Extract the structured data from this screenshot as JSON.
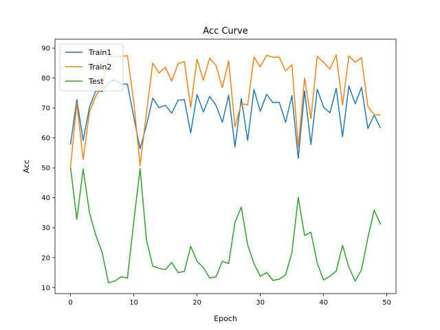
{
  "chart_data": {
    "type": "line",
    "title": "Acc Curve",
    "xlabel": "Epoch",
    "ylabel": "Acc",
    "xlim": [
      -2.45,
      51.45
    ],
    "ylim": [
      8,
      93
    ],
    "xticks": [
      0,
      10,
      20,
      30,
      40,
      50
    ],
    "yticks": [
      10,
      20,
      30,
      40,
      50,
      60,
      70,
      80,
      90
    ],
    "grid": false,
    "legend_position": "top-left",
    "x": [
      0,
      1,
      2,
      3,
      4,
      5,
      6,
      7,
      8,
      9,
      10,
      11,
      12,
      13,
      14,
      15,
      16,
      17,
      18,
      19,
      20,
      21,
      22,
      23,
      24,
      25,
      26,
      27,
      28,
      29,
      30,
      31,
      32,
      33,
      34,
      35,
      36,
      37,
      38,
      39,
      40,
      41,
      42,
      43,
      44,
      45,
      46,
      47,
      48,
      49
    ],
    "series": [
      {
        "name": "Train1",
        "color": "#1f77b4",
        "values": [
          57.8,
          72.8,
          59.2,
          70.3,
          75.8,
          75.5,
          78.5,
          79.5,
          78.0,
          78.0,
          67.0,
          56.4,
          64.2,
          73.3,
          70.1,
          70.9,
          68.3,
          72.6,
          72.8,
          61.7,
          74.5,
          68.7,
          73.9,
          70.9,
          65.2,
          74.3,
          57.0,
          73.2,
          59.2,
          76.2,
          68.9,
          74.6,
          71.8,
          71.9,
          65.2,
          74.2,
          53.2,
          75.7,
          57.8,
          76.3,
          70.3,
          68.4,
          76.6,
          60.4,
          77.4,
          71.4,
          76.9,
          63.2,
          67.6,
          63.3
        ]
      },
      {
        "name": "Train2",
        "color": "#ff7f0e",
        "values": [
          50.2,
          71.7,
          52.8,
          68.7,
          74.0,
          77.2,
          87.2,
          87.2,
          87.3,
          87.5,
          72.0,
          50.8,
          68.2,
          85.0,
          81.7,
          83.6,
          79.0,
          84.8,
          85.5,
          70.2,
          86.3,
          79.3,
          86.7,
          84.2,
          76.8,
          85.8,
          63.7,
          71.5,
          71.0,
          87.0,
          83.8,
          87.6,
          87.0,
          87.0,
          82.4,
          84.5,
          57.0,
          80.0,
          66.4,
          87.3,
          85.3,
          83.0,
          87.8,
          71.0,
          87.4,
          85.3,
          86.8,
          70.5,
          67.8,
          67.7
        ]
      },
      {
        "name": "Test",
        "color": "#2ca02c",
        "values": [
          50.2,
          32.8,
          49.6,
          35.0,
          27.5,
          21.8,
          11.6,
          12.2,
          13.6,
          13.2,
          32.0,
          49.8,
          26.0,
          17.2,
          16.4,
          16.0,
          18.4,
          15.0,
          15.4,
          23.8,
          18.8,
          16.7,
          13.2,
          13.6,
          18.8,
          18.0,
          31.8,
          36.9,
          24.3,
          18.0,
          13.8,
          15.0,
          12.4,
          12.8,
          14.3,
          21.6,
          40.2,
          27.4,
          28.5,
          18.2,
          12.5,
          13.8,
          15.5,
          24.1,
          16.8,
          12.2,
          16.0,
          26.6,
          35.9,
          31.1
        ]
      }
    ]
  }
}
